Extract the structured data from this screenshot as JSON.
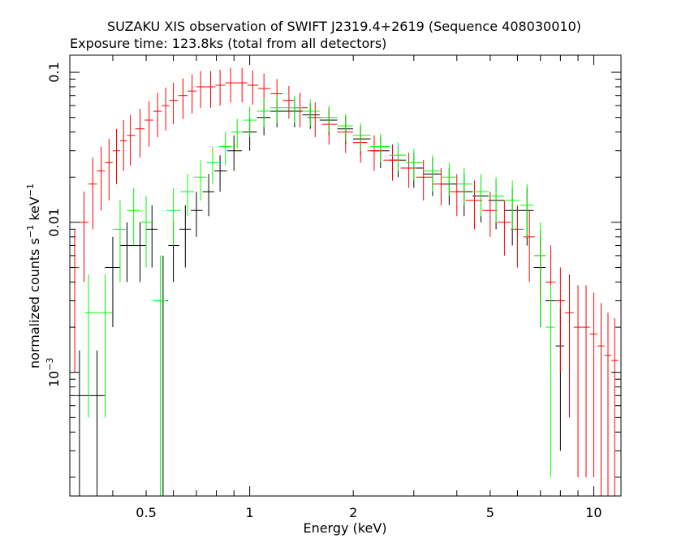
{
  "chart_data": {
    "type": "scatter",
    "title": "SUZAKU XIS observation of SWIFT J2319.4+2619 (Sequence 408030010)",
    "subtitle": "Exposure time: 123.8ks (total from all detectors)",
    "xlabel": "Energy (keV)",
    "ylabel": {
      "prefix": "normalized counts s",
      "sup1": "−1",
      "mid": " keV",
      "sup2": "−1"
    },
    "x_scale": "log",
    "y_scale": "log",
    "xlim": [
      0.3,
      12
    ],
    "ylim": [
      0.00015,
      0.13
    ],
    "x_ticks": [
      {
        "value": 0.5,
        "label": "0.5"
      },
      {
        "value": 1,
        "label": "1"
      },
      {
        "value": 2,
        "label": "2"
      },
      {
        "value": 5,
        "label": "5"
      },
      {
        "value": 10,
        "label": "10"
      }
    ],
    "y_ticks": [
      {
        "value": 0.1,
        "label": "0.1"
      },
      {
        "value": 0.01,
        "label": "0.01"
      },
      {
        "value": 0.001,
        "label": "10",
        "sup": "−3"
      }
    ],
    "grid": false,
    "legend": "none",
    "series": [
      {
        "color": "#000000",
        "x": [
          0.32,
          0.36,
          0.4,
          0.44,
          0.48,
          0.52,
          0.56,
          0.6,
          0.65,
          0.7,
          0.76,
          0.82,
          0.9,
          1.0,
          1.1,
          1.2,
          1.35,
          1.5,
          1.7,
          1.9,
          2.1,
          2.4,
          2.7,
          3.0,
          3.4,
          3.8,
          4.2,
          4.7,
          5.2,
          5.8,
          6.4,
          7.0,
          7.5,
          8.0
        ],
        "y": [
          0.0007,
          0.0007,
          0.005,
          0.007,
          0.007,
          0.009,
          0.003,
          0.007,
          0.009,
          0.012,
          0.016,
          0.022,
          0.03,
          0.04,
          0.05,
          0.055,
          0.055,
          0.052,
          0.048,
          0.042,
          0.036,
          0.03,
          0.026,
          0.023,
          0.021,
          0.018,
          0.016,
          0.015,
          0.014,
          0.012,
          0.012,
          0.005,
          0.003,
          0.0015
        ],
        "yerr": [
          0.0007,
          0.0007,
          0.003,
          0.003,
          0.003,
          0.004,
          0.003,
          0.003,
          0.004,
          0.004,
          0.005,
          0.006,
          0.008,
          0.01,
          0.012,
          0.012,
          0.012,
          0.01,
          0.01,
          0.009,
          0.008,
          0.007,
          0.006,
          0.006,
          0.006,
          0.005,
          0.005,
          0.005,
          0.005,
          0.005,
          0.005,
          0.003,
          0.002,
          0.0012
        ]
      },
      {
        "color": "#ff0000",
        "x": [
          0.31,
          0.33,
          0.35,
          0.37,
          0.39,
          0.41,
          0.43,
          0.45,
          0.48,
          0.51,
          0.54,
          0.57,
          0.6,
          0.64,
          0.68,
          0.72,
          0.77,
          0.82,
          0.88,
          0.95,
          1.02,
          1.1,
          1.2,
          1.3,
          1.4,
          1.55,
          1.7,
          1.9,
          2.1,
          2.3,
          2.6,
          2.9,
          3.2,
          3.6,
          4.0,
          4.5,
          5.0,
          5.5,
          6.0,
          6.5,
          7.0,
          7.5,
          8.0,
          8.5,
          9.0,
          9.5,
          10.0,
          10.5,
          11.0,
          11.5
        ],
        "y": [
          0.005,
          0.01,
          0.018,
          0.022,
          0.025,
          0.03,
          0.035,
          0.038,
          0.042,
          0.048,
          0.055,
          0.06,
          0.065,
          0.07,
          0.075,
          0.08,
          0.08,
          0.082,
          0.085,
          0.085,
          0.082,
          0.078,
          0.072,
          0.065,
          0.058,
          0.05,
          0.045,
          0.04,
          0.034,
          0.03,
          0.026,
          0.023,
          0.02,
          0.018,
          0.016,
          0.014,
          0.012,
          0.01,
          0.009,
          0.008,
          0.006,
          0.004,
          0.003,
          0.0025,
          0.002,
          0.002,
          0.0018,
          0.0015,
          0.0013,
          0.0012
        ],
        "yerr": [
          0.004,
          0.006,
          0.009,
          0.01,
          0.011,
          0.012,
          0.013,
          0.014,
          0.015,
          0.016,
          0.018,
          0.019,
          0.02,
          0.021,
          0.022,
          0.022,
          0.022,
          0.022,
          0.022,
          0.022,
          0.021,
          0.02,
          0.018,
          0.016,
          0.015,
          0.013,
          0.012,
          0.011,
          0.009,
          0.008,
          0.007,
          0.006,
          0.006,
          0.005,
          0.005,
          0.005,
          0.004,
          0.004,
          0.004,
          0.004,
          0.003,
          0.003,
          0.002,
          0.002,
          0.0018,
          0.0018,
          0.0016,
          0.0014,
          0.0012,
          0.0011
        ]
      },
      {
        "color": "#00ff00",
        "x": [
          0.34,
          0.38,
          0.42,
          0.46,
          0.5,
          0.55,
          0.6,
          0.66,
          0.72,
          0.78,
          0.85,
          0.92,
          1.0,
          1.1,
          1.2,
          1.35,
          1.5,
          1.7,
          1.9,
          2.1,
          2.4,
          2.7,
          3.0,
          3.4,
          3.8,
          4.2,
          4.7,
          5.2,
          5.8,
          6.4,
          7.0,
          7.5
        ],
        "y": [
          0.0025,
          0.0025,
          0.009,
          0.012,
          0.01,
          0.003,
          0.012,
          0.016,
          0.02,
          0.025,
          0.032,
          0.04,
          0.048,
          0.055,
          0.058,
          0.058,
          0.055,
          0.05,
          0.044,
          0.038,
          0.032,
          0.028,
          0.025,
          0.022,
          0.02,
          0.018,
          0.016,
          0.015,
          0.014,
          0.013,
          0.006,
          0.002
        ],
        "yerr": [
          0.002,
          0.002,
          0.005,
          0.005,
          0.005,
          0.003,
          0.005,
          0.005,
          0.006,
          0.007,
          0.008,
          0.009,
          0.011,
          0.012,
          0.012,
          0.012,
          0.011,
          0.01,
          0.009,
          0.008,
          0.007,
          0.006,
          0.006,
          0.006,
          0.005,
          0.005,
          0.005,
          0.005,
          0.005,
          0.005,
          0.004,
          0.0018
        ]
      }
    ]
  }
}
